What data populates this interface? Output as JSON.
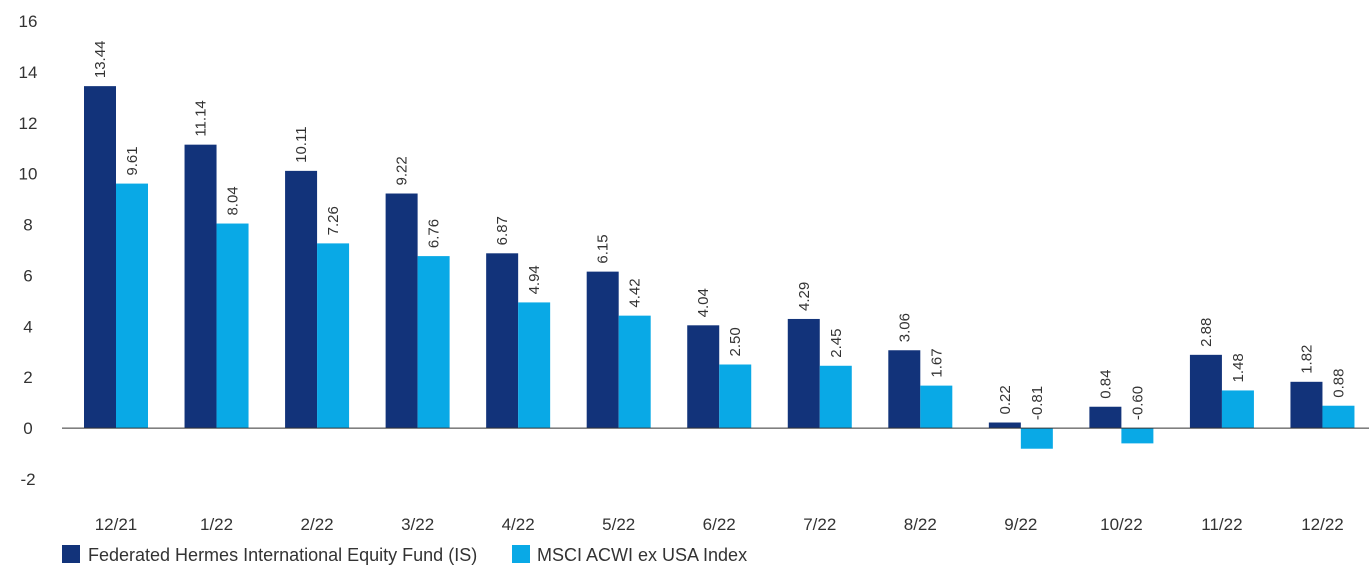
{
  "chart_data": {
    "type": "bar",
    "categories": [
      "12/21",
      "1/22",
      "2/22",
      "3/22",
      "4/22",
      "5/22",
      "6/22",
      "7/22",
      "8/22",
      "9/22",
      "10/22",
      "11/22",
      "12/22"
    ],
    "series": [
      {
        "name": "Federated Hermes International Equity Fund (IS)",
        "color": "#12337a",
        "values": [
          13.44,
          11.14,
          10.11,
          9.22,
          6.87,
          6.15,
          4.04,
          4.29,
          3.06,
          0.22,
          0.84,
          2.88,
          1.82
        ],
        "labels": [
          "13.44",
          "11.14",
          "10.11",
          "9.22",
          "6.87",
          "6.15",
          "4.04",
          "4.29",
          "3.06",
          "0.22",
          "0.84",
          "2.88",
          "1.82"
        ]
      },
      {
        "name": "MSCI ACWI ex USA Index",
        "color": "#09a9e6",
        "values": [
          9.61,
          8.04,
          7.26,
          6.76,
          4.94,
          4.42,
          2.5,
          2.45,
          1.67,
          -0.81,
          -0.6,
          1.48,
          0.88
        ],
        "labels": [
          "9.61",
          "8.04",
          "7.26",
          "6.76",
          "4.94",
          "4.42",
          "2.50",
          "2.45",
          "1.67",
          "-0.81",
          "-0.60",
          "1.48",
          "0.88"
        ]
      }
    ],
    "yticks": [
      "-2",
      "0",
      "2",
      "4",
      "6",
      "8",
      "10",
      "12",
      "14",
      "16"
    ],
    "ylim": [
      -2,
      16
    ],
    "grid": false,
    "legend": "bottom-left"
  }
}
